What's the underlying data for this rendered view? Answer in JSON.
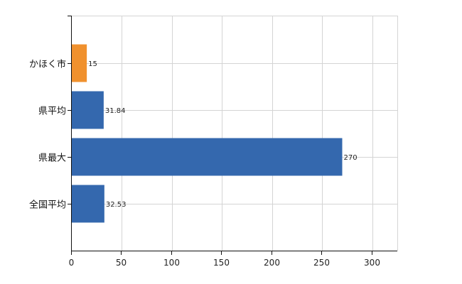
{
  "chart_data": {
    "type": "bar",
    "orientation": "horizontal",
    "categories": [
      "かほく市",
      "県平均",
      "県最大",
      "全国平均"
    ],
    "values": [
      15,
      31.84,
      270,
      32.53
    ],
    "value_labels": [
      "15",
      "31.84",
      "270",
      "32.53"
    ],
    "bar_colors": [
      "#f0912e",
      "#3468ae",
      "#3468ae",
      "#3468ae"
    ],
    "xlim": [
      0,
      325
    ],
    "xticks": [
      0,
      50,
      100,
      150,
      200,
      250,
      300
    ],
    "xtick_labels": [
      "0",
      "50",
      "100",
      "150",
      "200",
      "250",
      "300"
    ],
    "grid": true,
    "title": "",
    "xlabel": "",
    "ylabel": ""
  }
}
